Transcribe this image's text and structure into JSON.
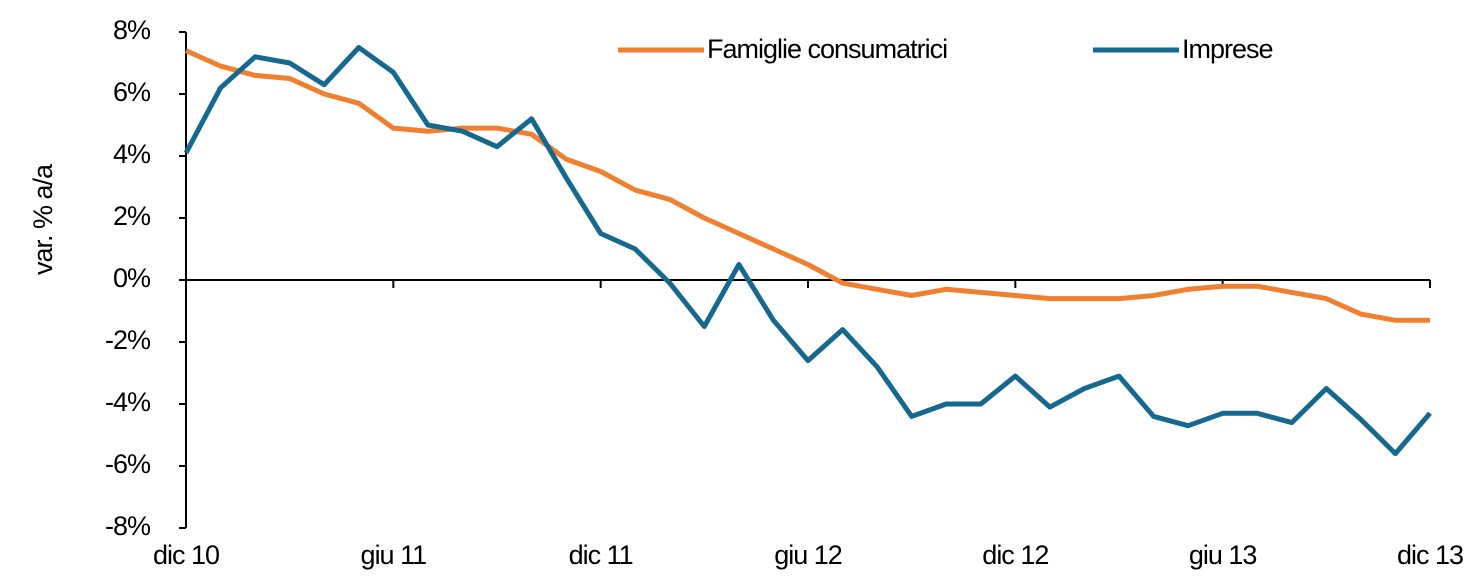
{
  "chart_data": {
    "type": "line",
    "y_label": "var. % a/a",
    "categories": [
      "dic 10",
      null,
      null,
      null,
      null,
      null,
      "giu 11",
      null,
      null,
      null,
      null,
      null,
      "dic 11",
      null,
      null,
      null,
      null,
      null,
      "giu 12",
      null,
      null,
      null,
      null,
      null,
      "dic 12",
      null,
      null,
      null,
      null,
      null,
      "giu 13",
      null,
      null,
      null,
      null,
      null,
      "dic 13"
    ],
    "series": [
      {
        "name": "Famiglie consumatrici",
        "color": "#f07f30",
        "values": [
          7.4,
          6.9,
          6.6,
          6.5,
          6.0,
          5.7,
          4.9,
          4.8,
          4.9,
          4.9,
          4.7,
          3.9,
          3.5,
          2.9,
          2.6,
          2.0,
          1.5,
          1.0,
          0.5,
          -0.1,
          -0.3,
          -0.5,
          -0.3,
          -0.4,
          -0.5,
          -0.6,
          -0.6,
          -0.6,
          -0.5,
          -0.3,
          -0.2,
          -0.2,
          -0.4,
          -0.6,
          -1.1,
          -1.3,
          -1.3
        ]
      },
      {
        "name": "Imprese",
        "color": "#15698f",
        "values": [
          4.1,
          6.2,
          7.2,
          7.0,
          6.3,
          7.5,
          6.7,
          5.0,
          4.8,
          4.3,
          5.2,
          3.3,
          1.5,
          1.0,
          -0.1,
          -1.5,
          0.5,
          -1.3,
          -2.6,
          -1.6,
          -2.8,
          -4.4,
          -4.0,
          -4.0,
          -3.1,
          -4.1,
          -3.5,
          -3.1,
          -4.4,
          -4.7,
          -4.3,
          -4.3,
          -4.6,
          -3.5,
          -4.5,
          -5.6,
          -4.3
        ]
      }
    ],
    "ylim": [
      -8,
      8
    ],
    "yticks": [
      {
        "value": -8,
        "label": "-8%"
      },
      {
        "value": -6,
        "label": "-6%"
      },
      {
        "value": -4,
        "label": "-4%"
      },
      {
        "value": -2,
        "label": "-2%"
      },
      {
        "value": 0,
        "label": "0%"
      },
      {
        "value": 2,
        "label": "2%"
      },
      {
        "value": 4,
        "label": "4%"
      },
      {
        "value": 6,
        "label": "6%"
      },
      {
        "value": 8,
        "label": "8%"
      }
    ],
    "grid": false,
    "legend": "top-right"
  }
}
